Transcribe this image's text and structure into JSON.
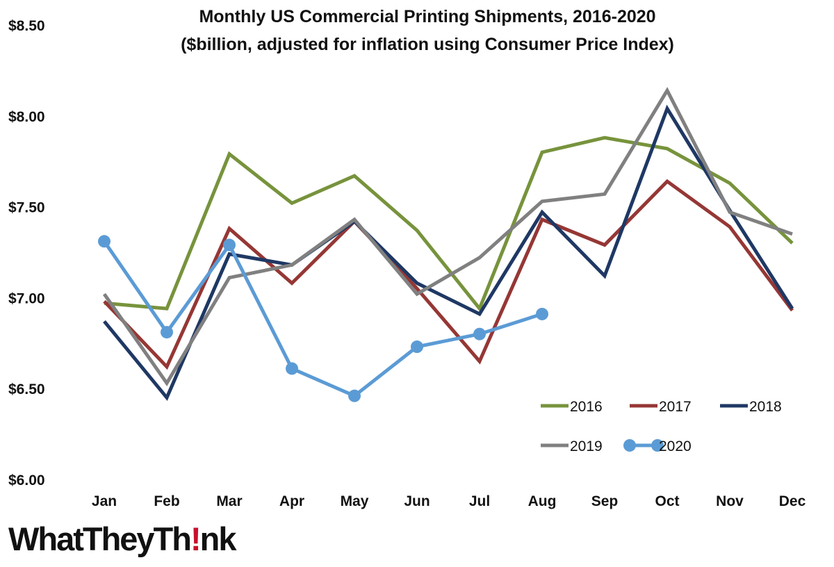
{
  "chart_data": {
    "type": "line",
    "title": "Monthly US Commercial Printing Shipments, 2016-2020",
    "subtitle": "($billion, adjusted for inflation using Consumer Price Index)",
    "categories": [
      "Jan",
      "Feb",
      "Mar",
      "Apr",
      "May",
      "Jun",
      "Jul",
      "Aug",
      "Sep",
      "Oct",
      "Nov",
      "Dec"
    ],
    "ylim": [
      6.0,
      8.5
    ],
    "yticks": [
      6.0,
      6.5,
      7.0,
      7.5,
      8.0,
      8.5
    ],
    "ytick_labels": [
      "$6.00",
      "$6.50",
      "$7.00",
      "$7.50",
      "$8.00",
      "$8.50"
    ],
    "grid": false,
    "legend_position": "bottom-right",
    "series": [
      {
        "name": "2016",
        "color": "#77933c",
        "markers": false,
        "values": [
          6.97,
          6.94,
          7.79,
          7.52,
          7.67,
          7.37,
          6.94,
          7.8,
          7.88,
          7.82,
          7.63,
          7.3
        ]
      },
      {
        "name": "2017",
        "color": "#953735",
        "markers": false,
        "values": [
          6.98,
          6.62,
          7.38,
          7.08,
          7.42,
          7.05,
          6.65,
          7.43,
          7.29,
          7.64,
          7.39,
          6.93
        ]
      },
      {
        "name": "2018",
        "color": "#1f3864",
        "markers": false,
        "values": [
          6.87,
          6.45,
          7.24,
          7.18,
          7.42,
          7.08,
          6.91,
          7.47,
          7.12,
          8.04,
          7.48,
          6.94
        ]
      },
      {
        "name": "2019",
        "color": "#808080",
        "markers": false,
        "values": [
          7.02,
          6.53,
          7.11,
          7.18,
          7.43,
          7.02,
          7.22,
          7.53,
          7.57,
          8.14,
          7.47,
          7.35
        ]
      },
      {
        "name": "2020",
        "color": "#5b9bd5",
        "markers": true,
        "values": [
          7.31,
          6.81,
          7.29,
          6.61,
          6.46,
          6.73,
          6.8,
          6.91,
          null,
          null,
          null,
          null
        ]
      }
    ]
  },
  "logo": {
    "part1": "WhatTheyTh",
    "part2": "!",
    "part3": "nk"
  }
}
